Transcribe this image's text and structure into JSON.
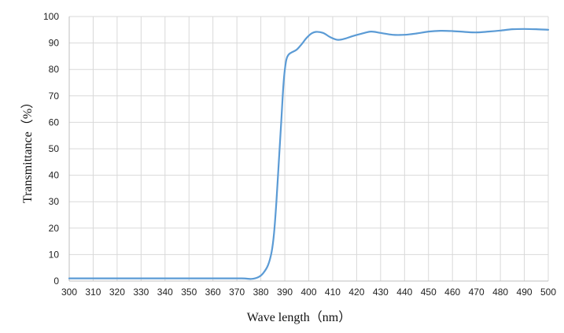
{
  "chart_data": {
    "type": "line",
    "title": "",
    "xlabel": "Wave length（nm）",
    "ylabel": "Transmittance（%）",
    "xlim": [
      300,
      500
    ],
    "ylim": [
      0,
      100
    ],
    "x_ticks": [
      300,
      310,
      320,
      330,
      340,
      350,
      360,
      370,
      380,
      390,
      400,
      410,
      420,
      430,
      440,
      450,
      460,
      470,
      480,
      490,
      500
    ],
    "y_ticks": [
      0,
      10,
      20,
      30,
      40,
      50,
      60,
      70,
      80,
      90,
      100
    ],
    "grid": true,
    "legend": "none",
    "series": [
      {
        "color": "#5b9bd5",
        "points": [
          [
            300,
            1.0
          ],
          [
            320,
            1.0
          ],
          [
            340,
            1.0
          ],
          [
            360,
            1.0
          ],
          [
            372,
            1.0
          ],
          [
            376,
            0.8
          ],
          [
            379,
            1.5
          ],
          [
            381,
            3
          ],
          [
            383,
            6
          ],
          [
            384.5,
            11
          ],
          [
            385.5,
            18
          ],
          [
            386.5,
            30
          ],
          [
            387.5,
            45
          ],
          [
            388.5,
            60
          ],
          [
            389.5,
            75
          ],
          [
            390.5,
            83
          ],
          [
            391.5,
            85.5
          ],
          [
            393,
            86.5
          ],
          [
            395,
            87.5
          ],
          [
            397,
            89.5
          ],
          [
            399,
            91.8
          ],
          [
            401,
            93.5
          ],
          [
            403,
            94.2
          ],
          [
            406,
            93.8
          ],
          [
            409,
            92.2
          ],
          [
            412,
            91.2
          ],
          [
            415,
            91.6
          ],
          [
            418,
            92.5
          ],
          [
            422,
            93.5
          ],
          [
            426,
            94.3
          ],
          [
            430,
            93.8
          ],
          [
            435,
            93.1
          ],
          [
            440,
            93.1
          ],
          [
            445,
            93.6
          ],
          [
            450,
            94.3
          ],
          [
            455,
            94.6
          ],
          [
            460,
            94.5
          ],
          [
            465,
            94.2
          ],
          [
            470,
            94.0
          ],
          [
            475,
            94.3
          ],
          [
            480,
            94.7
          ],
          [
            485,
            95.2
          ],
          [
            490,
            95.3
          ],
          [
            495,
            95.2
          ],
          [
            500,
            95.0
          ]
        ]
      }
    ]
  }
}
